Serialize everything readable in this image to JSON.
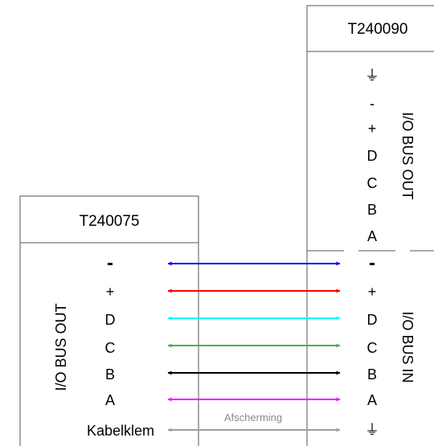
{
  "left_module": {
    "title": "T240075",
    "group_label": "I/O BUS OUT",
    "pins": [
      "-",
      "+",
      "D",
      "C",
      "B",
      "A"
    ],
    "clamp_label": "Kabelklem"
  },
  "right_module": {
    "title": "T240090",
    "out_group_label": "I/O BUS OUT",
    "out_pins": [
      "⏚",
      "-",
      "+",
      "D",
      "C",
      "B",
      "A"
    ],
    "in_group_label": "I/O BUS IN",
    "in_pins": [
      "-",
      "+",
      "D",
      "C",
      "B",
      "A",
      "⏚"
    ]
  },
  "shield_label": "Afscherming",
  "wires": [
    {
      "from": "-",
      "to": "-",
      "color": "#0000ff"
    },
    {
      "from": "+",
      "to": "+",
      "color": "#ff0000"
    },
    {
      "from": "D",
      "to": "D",
      "color": "#00ffff"
    },
    {
      "from": "C",
      "to": "C",
      "color": "#4caf50"
    },
    {
      "from": "B",
      "to": "B",
      "color": "#000000"
    },
    {
      "from": "A",
      "to": "A",
      "color": "#ff00ff"
    },
    {
      "from": "Kabelklem",
      "to": "⏚",
      "color": "#a0a0a0"
    }
  ]
}
